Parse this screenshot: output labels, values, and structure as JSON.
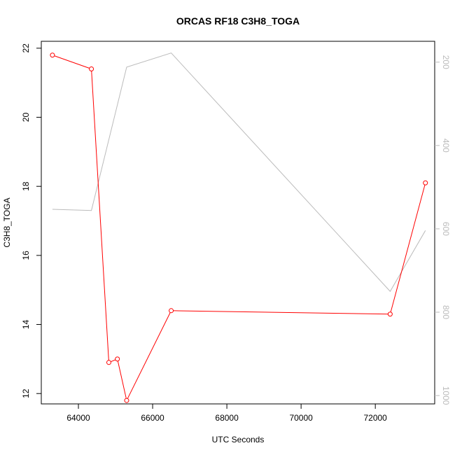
{
  "chart_data": {
    "type": "line",
    "title": "ORCAS RF18 C3H8_TOGA",
    "xlabel": "UTC Seconds",
    "ylabel": "C3H8_TOGA",
    "xlim": [
      63000,
      73600
    ],
    "ylim": [
      11.7,
      22.2
    ],
    "y2lim": [
      1020,
      150
    ],
    "x_ticks": [
      64000,
      66000,
      68000,
      70000,
      72000
    ],
    "y_ticks": [
      12,
      14,
      16,
      18,
      20,
      22
    ],
    "y2_ticks": [
      200,
      400,
      600,
      800,
      1000
    ],
    "colors": {
      "primary": "#ff0000",
      "secondary": "#bbbbbb",
      "axis": "#000000"
    },
    "series": [
      {
        "axis": "left",
        "color": "#ff0000",
        "marker": "open-circle",
        "x": [
          63300,
          64350,
          64820,
          65050,
          65300,
          66500,
          72400,
          73350
        ],
        "y": [
          21.8,
          21.4,
          12.9,
          13.0,
          11.8,
          14.4,
          14.3,
          18.1
        ]
      },
      {
        "axis": "right",
        "color": "#bbbbbb",
        "marker": "none",
        "x": [
          63300,
          64350,
          65300,
          66500,
          72400,
          73350
        ],
        "y": [
          553,
          556,
          212,
          178,
          750,
          604
        ]
      }
    ]
  }
}
